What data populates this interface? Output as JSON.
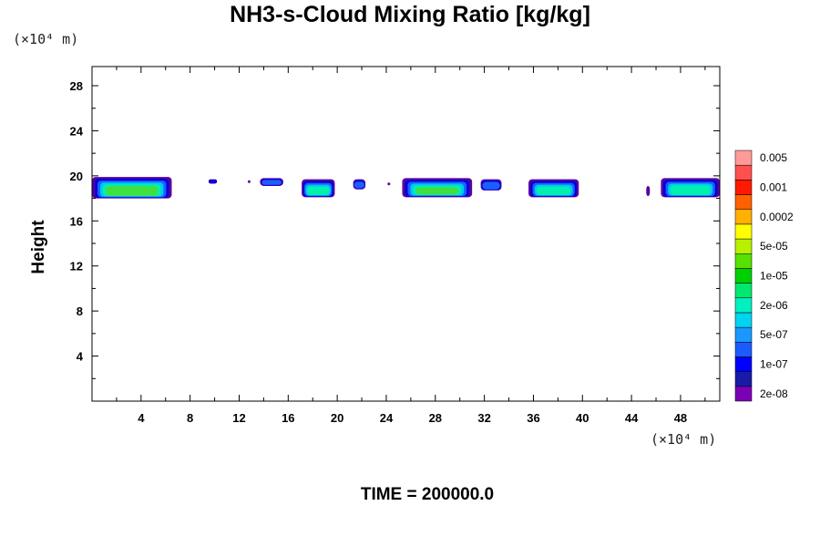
{
  "chart_data": {
    "type": "heatmap",
    "title": "NH3-s-Cloud Mixing Ratio [kg/kg]",
    "ylabel": "Height",
    "xlabel": "",
    "x_unit": "(×10⁴ m)",
    "y_unit": "(×10⁴ m)",
    "footer": "TIME = 200000.0",
    "xlim": [
      0,
      51.2
    ],
    "ylim": [
      0,
      29.7
    ],
    "x_ticks": [
      4,
      8,
      12,
      16,
      20,
      24,
      28,
      32,
      36,
      40,
      44,
      48
    ],
    "y_ticks": [
      4,
      8,
      12,
      16,
      20,
      24,
      28
    ],
    "colorbar": {
      "colors": [
        "#7b00b5",
        "#1a1aa8",
        "#0000ff",
        "#1c5cff",
        "#1a98ff",
        "#00d4f0",
        "#00f0c0",
        "#00e870",
        "#00d000",
        "#58e000",
        "#b8f000",
        "#ffff00",
        "#ffb000",
        "#ff6000",
        "#ff1a00",
        "#ff5050",
        "#ff9a9a"
      ],
      "labels": [
        "2e-08",
        "1e-07",
        "5e-07",
        "2e-06",
        "1e-05",
        "5e-05",
        "0.0002",
        "0.001",
        "0.005"
      ]
    },
    "cloud_layer": {
      "height_range": [
        18.0,
        20.0
      ],
      "blobs": [
        {
          "x0": 0.0,
          "x1": 6.5,
          "y0": 18.0,
          "y1": 19.9,
          "core": 5
        },
        {
          "x0": 9.5,
          "x1": 10.2,
          "y0": 19.3,
          "y1": 19.7,
          "core": 1
        },
        {
          "x0": 12.7,
          "x1": 12.9,
          "y0": 19.5,
          "y1": 19.6,
          "core": 0
        },
        {
          "x0": 13.7,
          "x1": 15.6,
          "y0": 19.1,
          "y1": 19.8,
          "core": 2
        },
        {
          "x0": 17.1,
          "x1": 19.8,
          "y0": 18.1,
          "y1": 19.7,
          "core": 4
        },
        {
          "x0": 21.3,
          "x1": 22.3,
          "y0": 18.8,
          "y1": 19.7,
          "core": 2
        },
        {
          "x0": 24.1,
          "x1": 24.3,
          "y0": 19.2,
          "y1": 19.4,
          "core": 0
        },
        {
          "x0": 25.3,
          "x1": 31.0,
          "y0": 18.1,
          "y1": 19.8,
          "core": 5
        },
        {
          "x0": 31.7,
          "x1": 33.4,
          "y0": 18.7,
          "y1": 19.7,
          "core": 2
        },
        {
          "x0": 35.6,
          "x1": 39.7,
          "y0": 18.1,
          "y1": 19.7,
          "core": 4
        },
        {
          "x0": 45.2,
          "x1": 45.5,
          "y0": 18.2,
          "y1": 19.1,
          "core": 0
        },
        {
          "x0": 46.4,
          "x1": 51.2,
          "y0": 18.1,
          "y1": 19.8,
          "core": 4
        }
      ]
    }
  }
}
